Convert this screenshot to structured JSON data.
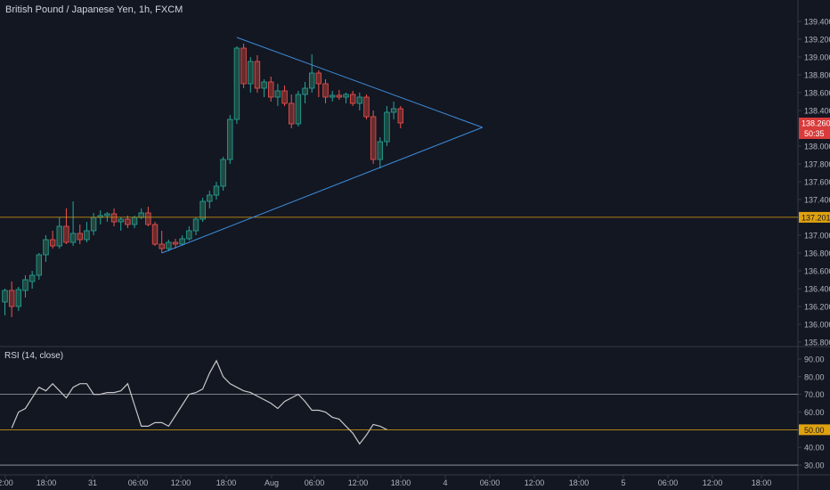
{
  "header": {
    "title": "British Pound / Japanese Yen, 1h, FXCM"
  },
  "rsi": {
    "title": "RSI (14, close)"
  },
  "colors": {
    "background": "#131722",
    "grid_border": "#363a45",
    "bull": "#26a69a",
    "bull_fill": "#1e4a41",
    "bear": "#ef5350",
    "bear_fill": "#6b2a2c",
    "trendline": "#3d8bd9",
    "level": "#e0a20f",
    "rsi_line": "#c8c8c8",
    "text": "#b2b5be"
  },
  "chart_data": [
    {
      "type": "candlestick",
      "title": "British Pound / Japanese Yen, 1h, FXCM",
      "ylim": [
        135.76,
        139.56
      ],
      "y_ticks": [
        "139.400",
        "139.200",
        "139.000",
        "138.800",
        "138.600",
        "138.400",
        "138.200",
        "138.000",
        "137.800",
        "137.600",
        "137.400",
        "137.200",
        "137.000",
        "136.800",
        "136.600",
        "136.400",
        "136.200",
        "136.000",
        "135.800"
      ],
      "x_ticks": [
        "2:00",
        "18:00",
        "31",
        "06:00",
        "12:00",
        "18:00",
        "Aug",
        "06:00",
        "12:00",
        "18:00",
        "4",
        "06:00",
        "12:00",
        "18:00",
        "5",
        "06:00",
        "12:00",
        "18:00"
      ],
      "last_price": "138.260",
      "countdown": "50:35",
      "horizontal_level": "137.201",
      "candles": [
        {
          "o": 136.25,
          "h": 136.4,
          "l": 136.1,
          "c": 136.38
        },
        {
          "o": 136.38,
          "h": 136.48,
          "l": 136.08,
          "c": 136.2
        },
        {
          "o": 136.2,
          "h": 136.42,
          "l": 136.15,
          "c": 136.39
        },
        {
          "o": 136.38,
          "h": 136.55,
          "l": 136.3,
          "c": 136.5
        },
        {
          "o": 136.48,
          "h": 136.6,
          "l": 136.4,
          "c": 136.55
        },
        {
          "o": 136.55,
          "h": 136.8,
          "l": 136.5,
          "c": 136.78
        },
        {
          "o": 136.78,
          "h": 137.0,
          "l": 136.7,
          "c": 136.95
        },
        {
          "o": 136.95,
          "h": 137.05,
          "l": 136.85,
          "c": 136.88
        },
        {
          "o": 136.88,
          "h": 137.2,
          "l": 136.85,
          "c": 137.1
        },
        {
          "o": 137.1,
          "h": 137.3,
          "l": 136.9,
          "c": 136.92
        },
        {
          "o": 136.92,
          "h": 137.38,
          "l": 136.88,
          "c": 137.02
        },
        {
          "o": 137.02,
          "h": 137.12,
          "l": 136.9,
          "c": 136.95
        },
        {
          "o": 136.95,
          "h": 137.15,
          "l": 136.92,
          "c": 137.05
        },
        {
          "o": 137.05,
          "h": 137.25,
          "l": 137.0,
          "c": 137.2
        },
        {
          "o": 137.2,
          "h": 137.28,
          "l": 137.12,
          "c": 137.22
        },
        {
          "o": 137.22,
          "h": 137.26,
          "l": 137.15,
          "c": 137.24
        },
        {
          "o": 137.24,
          "h": 137.3,
          "l": 137.1,
          "c": 137.15
        },
        {
          "o": 137.15,
          "h": 137.2,
          "l": 137.05,
          "c": 137.18
        },
        {
          "o": 137.18,
          "h": 137.22,
          "l": 137.08,
          "c": 137.12
        },
        {
          "o": 137.12,
          "h": 137.22,
          "l": 137.08,
          "c": 137.2
        },
        {
          "o": 137.2,
          "h": 137.3,
          "l": 137.18,
          "c": 137.25
        },
        {
          "o": 137.25,
          "h": 137.32,
          "l": 137.1,
          "c": 137.12
        },
        {
          "o": 137.12,
          "h": 137.15,
          "l": 136.88,
          "c": 136.9
        },
        {
          "o": 136.9,
          "h": 137.05,
          "l": 136.8,
          "c": 136.85
        },
        {
          "o": 136.85,
          "h": 136.95,
          "l": 136.82,
          "c": 136.92
        },
        {
          "o": 136.92,
          "h": 136.96,
          "l": 136.85,
          "c": 136.9
        },
        {
          "o": 136.9,
          "h": 137.0,
          "l": 136.88,
          "c": 136.96
        },
        {
          "o": 136.96,
          "h": 137.1,
          "l": 136.94,
          "c": 137.05
        },
        {
          "o": 137.05,
          "h": 137.2,
          "l": 137.0,
          "c": 137.18
        },
        {
          "o": 137.18,
          "h": 137.42,
          "l": 137.15,
          "c": 137.38
        },
        {
          "o": 137.38,
          "h": 137.5,
          "l": 137.3,
          "c": 137.45
        },
        {
          "o": 137.45,
          "h": 137.6,
          "l": 137.4,
          "c": 137.55
        },
        {
          "o": 137.55,
          "h": 137.88,
          "l": 137.5,
          "c": 137.85
        },
        {
          "o": 137.85,
          "h": 138.35,
          "l": 137.8,
          "c": 138.3
        },
        {
          "o": 138.3,
          "h": 139.12,
          "l": 138.25,
          "c": 139.1
        },
        {
          "o": 139.1,
          "h": 139.15,
          "l": 138.65,
          "c": 138.7
        },
        {
          "o": 138.7,
          "h": 139.0,
          "l": 138.6,
          "c": 138.95
        },
        {
          "o": 138.95,
          "h": 139.02,
          "l": 138.6,
          "c": 138.65
        },
        {
          "o": 138.65,
          "h": 138.75,
          "l": 138.55,
          "c": 138.72
        },
        {
          "o": 138.72,
          "h": 138.78,
          "l": 138.5,
          "c": 138.55
        },
        {
          "o": 138.55,
          "h": 138.7,
          "l": 138.45,
          "c": 138.62
        },
        {
          "o": 138.62,
          "h": 138.68,
          "l": 138.45,
          "c": 138.48
        },
        {
          "o": 138.48,
          "h": 138.58,
          "l": 138.2,
          "c": 138.25
        },
        {
          "o": 138.25,
          "h": 138.62,
          "l": 138.22,
          "c": 138.58
        },
        {
          "o": 138.58,
          "h": 138.72,
          "l": 138.48,
          "c": 138.65
        },
        {
          "o": 138.65,
          "h": 139.03,
          "l": 138.6,
          "c": 138.82
        },
        {
          "o": 138.82,
          "h": 138.85,
          "l": 138.55,
          "c": 138.7
        },
        {
          "o": 138.7,
          "h": 138.75,
          "l": 138.48,
          "c": 138.55
        },
        {
          "o": 138.55,
          "h": 138.62,
          "l": 138.5,
          "c": 138.57
        },
        {
          "o": 138.57,
          "h": 138.63,
          "l": 138.52,
          "c": 138.55
        },
        {
          "o": 138.55,
          "h": 138.6,
          "l": 138.48,
          "c": 138.58
        },
        {
          "o": 138.58,
          "h": 138.62,
          "l": 138.45,
          "c": 138.48
        },
        {
          "o": 138.48,
          "h": 138.6,
          "l": 138.4,
          "c": 138.55
        },
        {
          "o": 138.55,
          "h": 138.58,
          "l": 138.3,
          "c": 138.33
        },
        {
          "o": 138.33,
          "h": 138.4,
          "l": 137.8,
          "c": 137.85
        },
        {
          "o": 137.85,
          "h": 138.1,
          "l": 137.75,
          "c": 138.05
        },
        {
          "o": 138.05,
          "h": 138.45,
          "l": 138.0,
          "c": 138.38
        },
        {
          "o": 138.38,
          "h": 138.5,
          "l": 138.3,
          "c": 138.42
        },
        {
          "o": 138.42,
          "h": 138.45,
          "l": 138.2,
          "c": 138.26
        }
      ]
    },
    {
      "type": "line",
      "title": "RSI (14, close)",
      "ylim": [
        25,
        97
      ],
      "y_ticks": [
        "90.00",
        "80.00",
        "70.00",
        "60.00",
        "50.00",
        "40.00",
        "30.00"
      ],
      "bands": [
        70,
        50,
        30
      ],
      "last_value": "50.00",
      "values": [
        51,
        60,
        62,
        68,
        74,
        72,
        76,
        72,
        68,
        74,
        76,
        76,
        70,
        70,
        71,
        71,
        72,
        76,
        64,
        52,
        52,
        54,
        54,
        52,
        58,
        64,
        70,
        71,
        73,
        82,
        89,
        80,
        76,
        74,
        72,
        71,
        69,
        67,
        65,
        62,
        66,
        68,
        70,
        66,
        61,
        61,
        60,
        57,
        56,
        52,
        48,
        42,
        47,
        53,
        52,
        50
      ]
    }
  ]
}
